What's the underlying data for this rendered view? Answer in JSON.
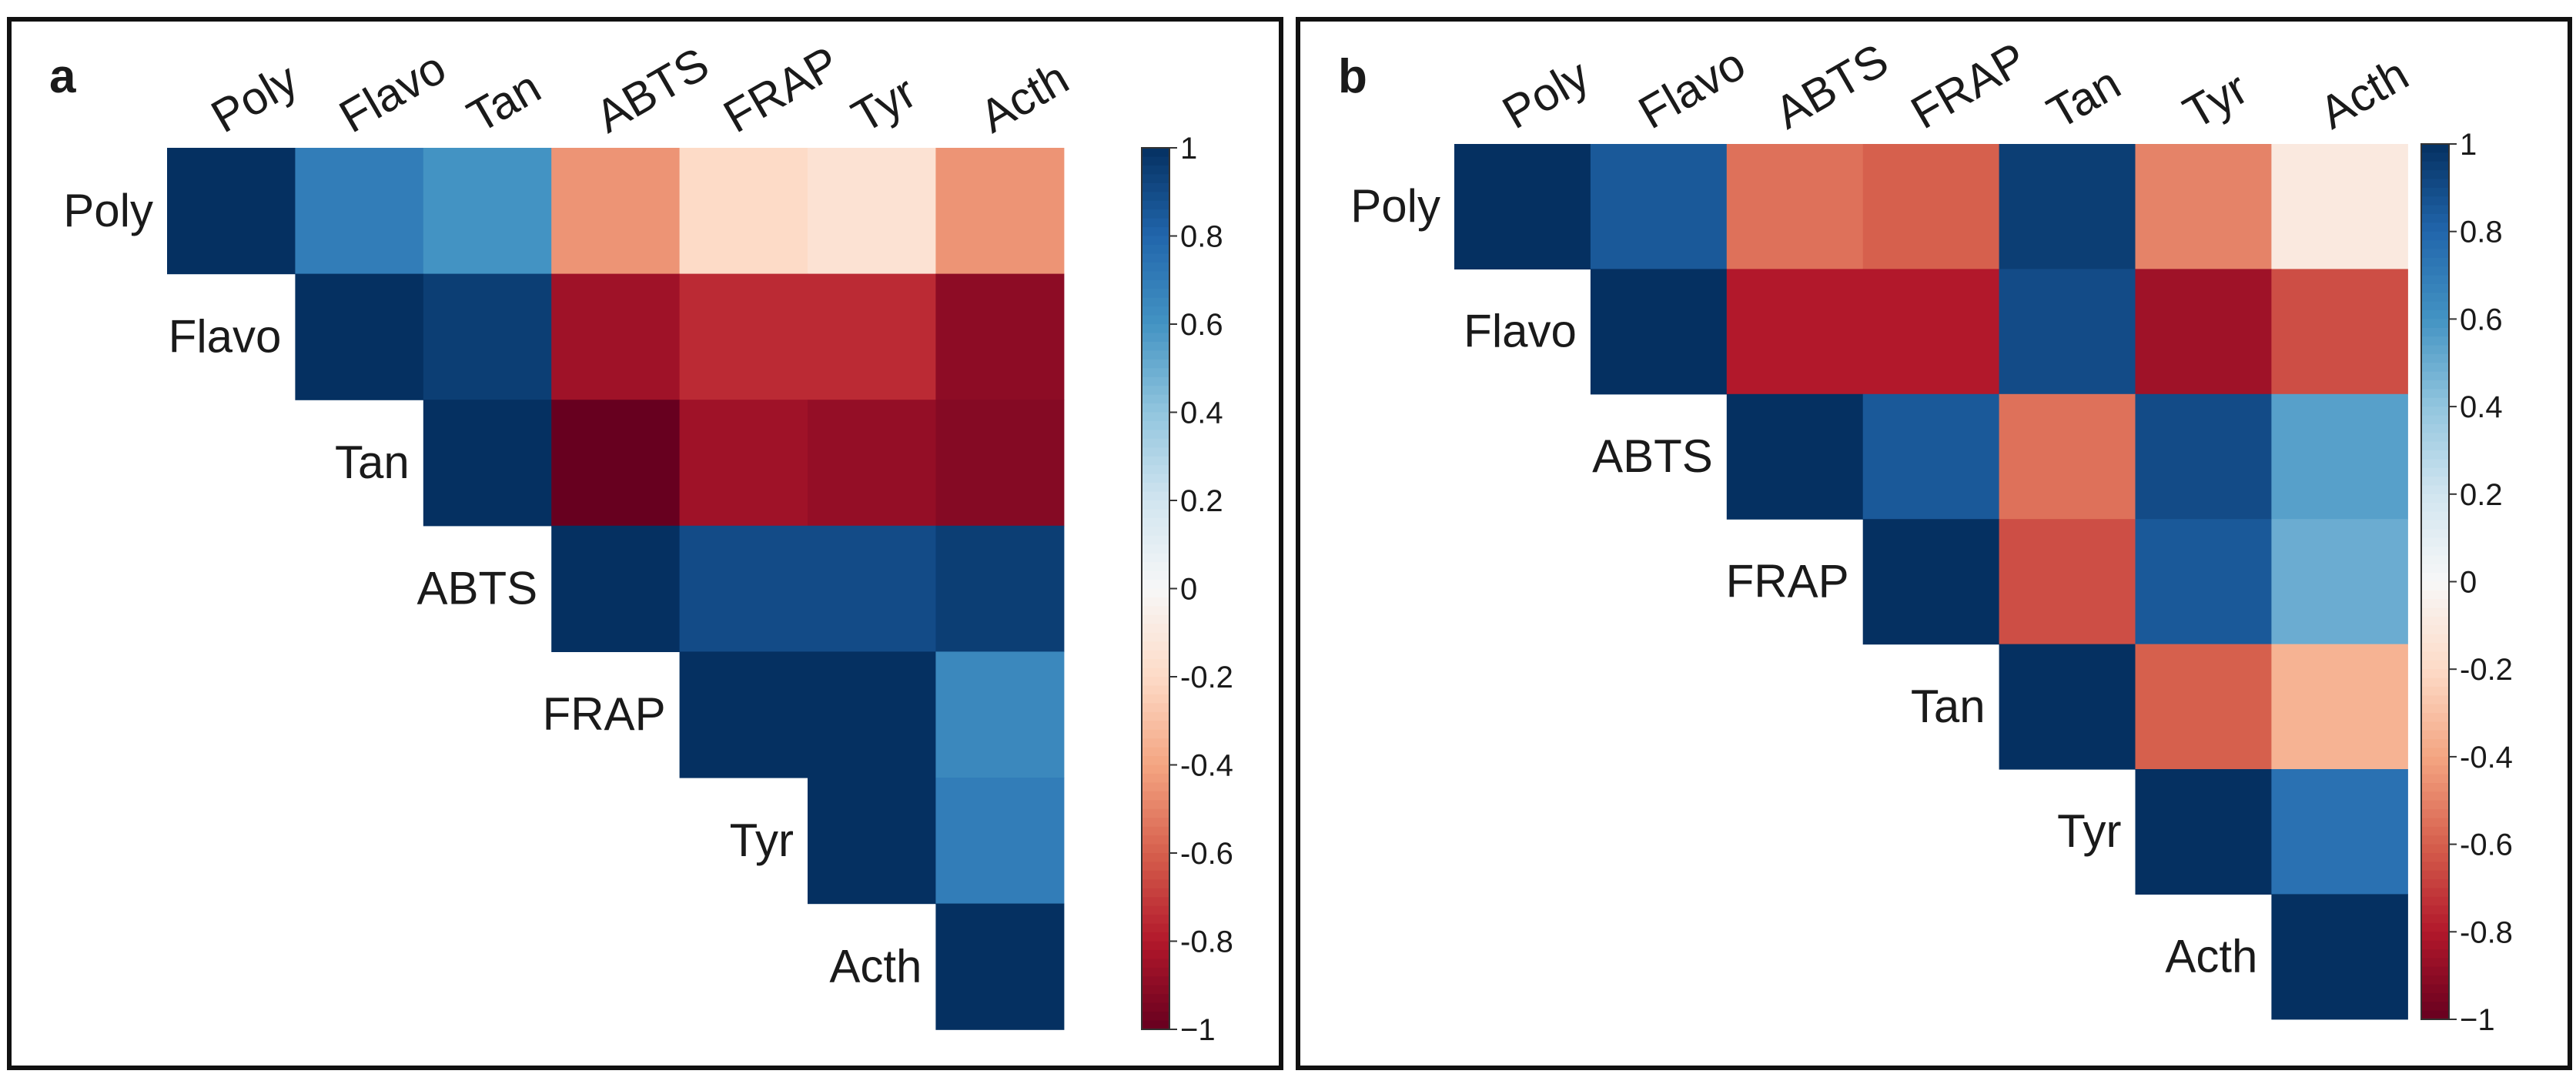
{
  "colors": {
    "negative": "#67001F",
    "neutral": "#FFFFFF",
    "positive": "#053061",
    "frame": "#111111"
  },
  "colorbar": {
    "ticks": [
      "1",
      "0.8",
      "0.6",
      "0.4",
      "0.2",
      "0",
      "-0.2",
      "-0.4",
      "-0.6",
      "-0.8",
      "−1"
    ],
    "tick_values": [
      1,
      0.8,
      0.6,
      0.4,
      0.2,
      0,
      -0.2,
      -0.4,
      -0.6,
      -0.8,
      -1
    ],
    "range": [
      -1,
      1
    ]
  },
  "chart_data": [
    {
      "type": "heatmap",
      "panel": "a",
      "title": "",
      "shape": "upper-triangle",
      "variables": [
        "Poly",
        "Flavo",
        "Tan",
        "ABTS",
        "FRAP",
        "Tyr",
        "Acth"
      ],
      "matrix": [
        [
          1.0,
          0.7,
          0.6,
          -0.45,
          -0.2,
          -0.15,
          -0.45
        ],
        [
          null,
          1.0,
          0.95,
          -0.85,
          -0.75,
          -0.75,
          -0.9
        ],
        [
          null,
          null,
          1.0,
          -1.0,
          -0.85,
          -0.88,
          -0.92
        ],
        [
          null,
          null,
          null,
          1.0,
          0.9,
          0.9,
          0.95
        ],
        [
          null,
          null,
          null,
          null,
          1.0,
          1.0,
          0.65
        ],
        [
          null,
          null,
          null,
          null,
          null,
          1.0,
          0.7
        ],
        [
          null,
          null,
          null,
          null,
          null,
          null,
          1.0
        ]
      ]
    },
    {
      "type": "heatmap",
      "panel": "b",
      "title": "",
      "shape": "upper-triangle",
      "variables": [
        "Poly",
        "Flavo",
        "ABTS",
        "FRAP",
        "Tan",
        "Tyr",
        "Acth"
      ],
      "matrix": [
        [
          1.0,
          0.85,
          -0.55,
          -0.6,
          0.95,
          -0.5,
          -0.1
        ],
        [
          null,
          1.0,
          -0.8,
          -0.8,
          0.9,
          -0.85,
          -0.65
        ],
        [
          null,
          null,
          1.0,
          0.85,
          -0.55,
          0.9,
          0.55
        ],
        [
          null,
          null,
          null,
          1.0,
          -0.65,
          0.85,
          0.5
        ],
        [
          null,
          null,
          null,
          null,
          1.0,
          -0.6,
          -0.35
        ],
        [
          null,
          null,
          null,
          null,
          null,
          1.0,
          0.75
        ],
        [
          null,
          null,
          null,
          null,
          null,
          null,
          1.0
        ]
      ]
    }
  ]
}
